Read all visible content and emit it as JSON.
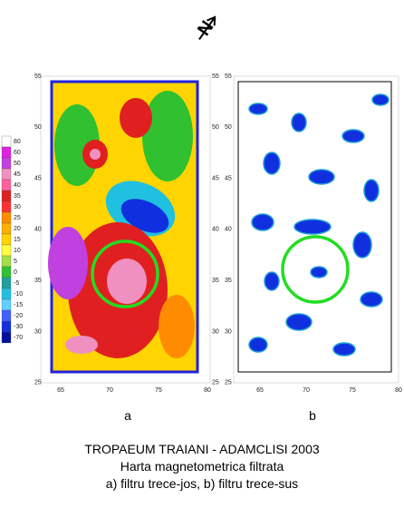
{
  "north": "N",
  "colorbar": {
    "labels": [
      80,
      60,
      50,
      45,
      40,
      35,
      30,
      25,
      20,
      15,
      10,
      5,
      0,
      -5,
      -10,
      -15,
      -20,
      -30,
      -70
    ]
  },
  "panels": [
    {
      "label": "a",
      "xticks": [
        65,
        70,
        75,
        80
      ],
      "yticks": [
        55,
        50,
        45,
        40,
        35,
        30,
        25
      ]
    },
    {
      "label": "b",
      "xticks": [
        65,
        70,
        75,
        80
      ],
      "yticks": [
        55,
        50,
        45,
        40,
        35,
        30,
        25
      ]
    }
  ],
  "caption": [
    "TROPAEUM TRAIANI - ADAMCLISI 2003",
    "Harta magnetometrica filtrata",
    "a) filtru trece-jos, b) filtru trece-sus"
  ]
}
